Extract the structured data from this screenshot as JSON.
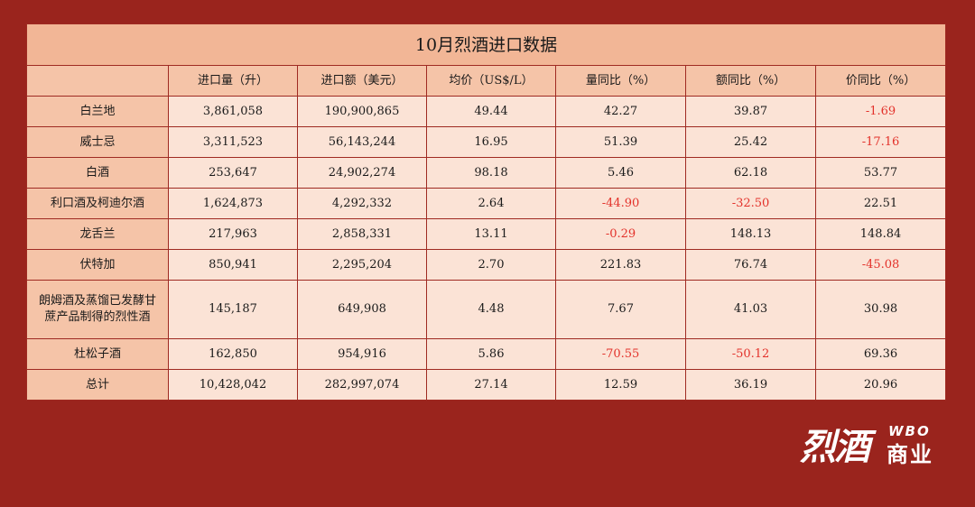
{
  "table": {
    "title": "10月烈酒进口数据",
    "headers": [
      "",
      "进口量（升）",
      "进口额（美元）",
      "均价（US$/L）",
      "量同比（%）",
      "额同比（%）",
      "价同比（%）"
    ],
    "rows": [
      {
        "name": "白兰地",
        "values": [
          "3,861,058",
          "190,900,865",
          "49.44",
          "42.27",
          "39.87",
          "-1.69"
        ]
      },
      {
        "name": "威士忌",
        "values": [
          "3,311,523",
          "56,143,244",
          "16.95",
          "51.39",
          "25.42",
          "-17.16"
        ]
      },
      {
        "name": "白酒",
        "values": [
          "253,647",
          "24,902,274",
          "98.18",
          "5.46",
          "62.18",
          "53.77"
        ]
      },
      {
        "name": "利口酒及柯迪尔酒",
        "values": [
          "1,624,873",
          "4,292,332",
          "2.64",
          "-44.90",
          "-32.50",
          "22.51"
        ]
      },
      {
        "name": "龙舌兰",
        "values": [
          "217,963",
          "2,858,331",
          "13.11",
          "-0.29",
          "148.13",
          "148.84"
        ]
      },
      {
        "name": "伏特加",
        "values": [
          "850,941",
          "2,295,204",
          "2.70",
          "221.83",
          "76.74",
          "-45.08"
        ]
      },
      {
        "name_line1": "朗姆酒及蒸馏已发酵甘",
        "name_line2": "蔗产品制得的烈性酒",
        "values": [
          "145,187",
          "649,908",
          "4.48",
          "7.67",
          "41.03",
          "30.98"
        ]
      },
      {
        "name": "杜松子酒",
        "values": [
          "162,850",
          "954,916",
          "5.86",
          "-70.55",
          "-50.12",
          "69.36"
        ]
      },
      {
        "name": "总计",
        "values": [
          "10,428,042",
          "282,997,074",
          "27.14",
          "12.59",
          "36.19",
          "20.96"
        ]
      }
    ]
  },
  "logo": {
    "main": "烈酒",
    "wbo": "WBO",
    "sub": "商业"
  },
  "colors": {
    "background": "#9a241d",
    "title_bg": "#f2b696",
    "header_bg": "#f5c4a8",
    "cell_bg": "#fbe3d6",
    "negative": "#e3322b"
  }
}
